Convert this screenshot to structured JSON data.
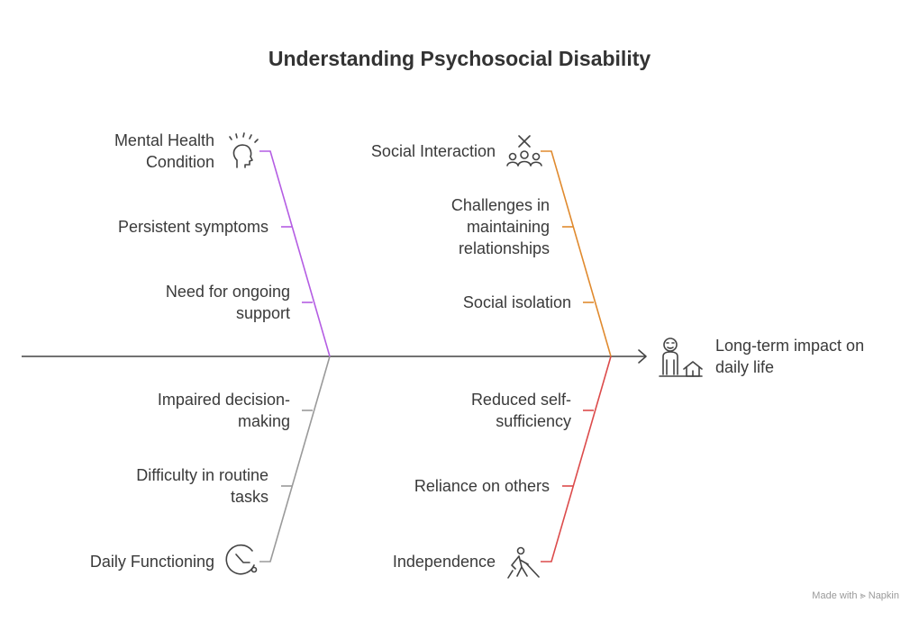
{
  "title": "Understanding Psychosocial Disability",
  "effect": {
    "line1": "Long-term impact on",
    "line2": "daily life",
    "icon": "person-home-icon"
  },
  "branches": {
    "mental_health": {
      "label_line1": "Mental Health",
      "label_line2": "Condition",
      "icon": "stress-head-icon",
      "color": "#b45de3",
      "cause1": "Persistent symptoms",
      "cause2_line1": "Need for ongoing",
      "cause2_line2": "support"
    },
    "social": {
      "label": "Social Interaction",
      "icon": "group-cross-icon",
      "color": "#e08a2e",
      "cause1_line1": "Challenges in",
      "cause1_line2": "maintaining",
      "cause1_line3": "relationships",
      "cause2": "Social isolation"
    },
    "daily": {
      "label": "Daily Functioning",
      "icon": "clock-icon",
      "color": "#9a9a9a",
      "cause1_line1": "Impaired decision-",
      "cause1_line2": "making",
      "cause2_line1": "Difficulty in routine",
      "cause2_line2": "tasks"
    },
    "independence": {
      "label": "Independence",
      "icon": "walking-cane-icon",
      "color": "#dc4b4b",
      "cause1_line1": "Reduced self-",
      "cause1_line2": "sufficiency",
      "cause2": "Reliance on others"
    }
  },
  "watermark": "Made with ⪢ Napkin"
}
